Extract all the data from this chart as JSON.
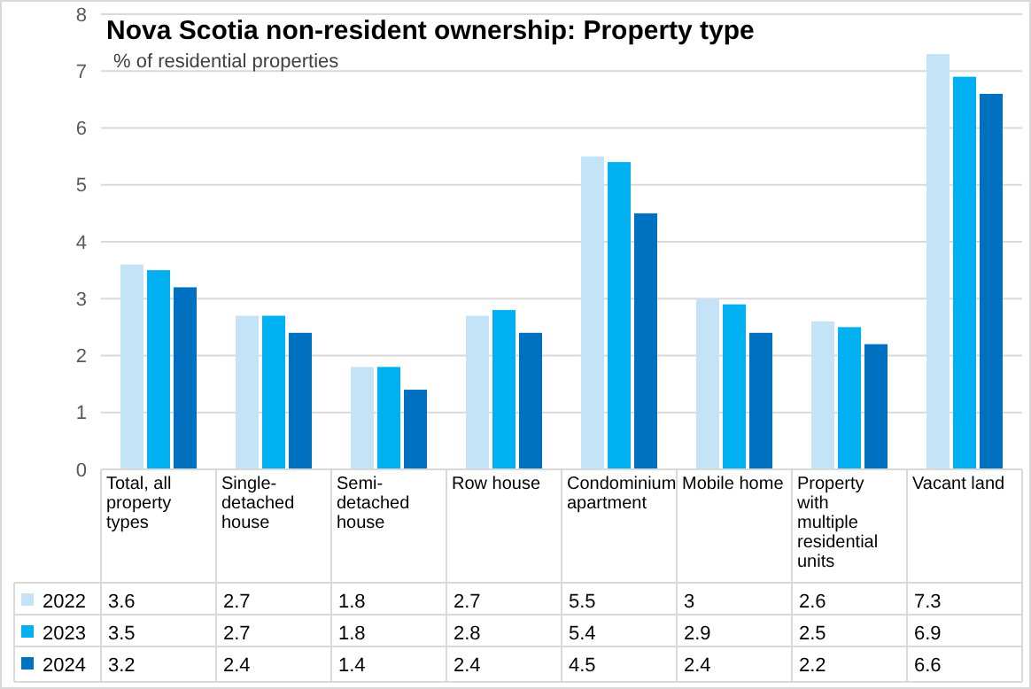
{
  "chart_data": {
    "type": "bar",
    "title": "Nova Scotia non-resident ownership: Property type",
    "subtitle": "% of residential properties",
    "categories": [
      "Total, all property types",
      "Single-detached house",
      "Semi-detached house",
      "Row house",
      "Condominium apartment",
      "Mobile home",
      "Property with multiple residential units",
      "Vacant land"
    ],
    "series": [
      {
        "name": "2022",
        "color": "#c5e3f6",
        "values": [
          3.6,
          2.7,
          1.8,
          2.7,
          5.5,
          3,
          2.6,
          7.3
        ]
      },
      {
        "name": "2023",
        "color": "#00b0f0",
        "values": [
          3.5,
          2.7,
          1.8,
          2.8,
          5.4,
          2.9,
          2.5,
          6.9
        ]
      },
      {
        "name": "2024",
        "color": "#0070c0",
        "values": [
          3.2,
          2.4,
          1.4,
          2.4,
          4.5,
          2.4,
          2.2,
          6.6
        ]
      }
    ],
    "ylim": [
      0,
      8
    ],
    "yticks": [
      0,
      1,
      2,
      3,
      4,
      5,
      6,
      7,
      8
    ],
    "grid": "y",
    "legend": "bottom",
    "data_labels": true
  }
}
